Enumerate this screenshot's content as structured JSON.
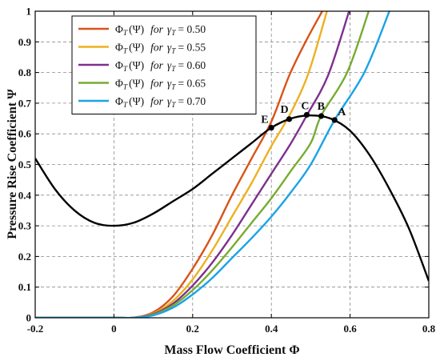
{
  "chart_data": {
    "type": "line",
    "xlabel": "Mass Flow Coefficient Φ",
    "ylabel": "Pressure Rise Coefficient Ψ",
    "xlim": [
      -0.2,
      0.8
    ],
    "ylim": [
      0,
      1
    ],
    "xticks": [
      "-0.2",
      "0",
      "0.2",
      "0.4",
      "0.6",
      "0.8"
    ],
    "yticks": [
      "0",
      "0.1",
      "0.2",
      "0.3",
      "0.4",
      "0.5",
      "0.6",
      "0.7",
      "0.8",
      "0.9",
      "1"
    ],
    "grid": true,
    "grid_style": "dashed",
    "legend_position": "top-left",
    "compressor_characteristic": {
      "color": "#000000",
      "x": [
        -0.2,
        -0.15,
        -0.1,
        -0.05,
        0,
        0.05,
        0.1,
        0.15,
        0.2,
        0.25,
        0.3,
        0.35,
        0.4,
        0.45,
        0.5,
        0.55,
        0.6,
        0.65,
        0.7,
        0.75,
        0.8
      ],
      "y": [
        0.52,
        0.42,
        0.35,
        0.31,
        0.3,
        0.31,
        0.34,
        0.38,
        0.42,
        0.47,
        0.52,
        0.57,
        0.62,
        0.65,
        0.66,
        0.65,
        0.61,
        0.53,
        0.42,
        0.29,
        0.12
      ]
    },
    "series": [
      {
        "label_prefix": "Φ",
        "label_sub": "T",
        "label_arg": "(Ψ)",
        "label_for": "for",
        "label_gamma": "γ",
        "label_eq": "= 0.50",
        "color": "#d95319",
        "x": [
          -0.2,
          0,
          0.05,
          0.1,
          0.15,
          0.2,
          0.25,
          0.3,
          0.35,
          0.4,
          0.4453,
          0.4868,
          0.5292
        ],
        "y": [
          0,
          0,
          0.0005,
          0.018,
          0.07,
          0.16,
          0.27,
          0.4,
          0.52,
          0.64,
          0.79,
          0.9,
          1.0
        ]
      },
      {
        "label_prefix": "Φ",
        "label_sub": "T",
        "label_arg": "(Ψ)",
        "label_for": "for",
        "label_gamma": "γ",
        "label_eq": "= 0.55",
        "color": "#edb120",
        "x": [
          -0.2,
          0,
          0.05,
          0.1,
          0.15,
          0.2,
          0.25,
          0.3,
          0.35,
          0.4,
          0.45,
          0.4948,
          0.5412
        ],
        "y": [
          0,
          0,
          0.0004,
          0.014,
          0.055,
          0.125,
          0.22,
          0.33,
          0.44,
          0.56,
          0.67,
          0.8,
          1.0
        ]
      },
      {
        "label_prefix": "Φ",
        "label_sub": "T",
        "label_arg": "(Ψ)",
        "label_for": "for",
        "label_gamma": "γ",
        "label_eq": "= 0.60",
        "color": "#7e2f8e",
        "x": [
          -0.2,
          0,
          0.05,
          0.1,
          0.15,
          0.2,
          0.25,
          0.3,
          0.35,
          0.4,
          0.45,
          0.4899,
          0.5439,
          0.5975
        ],
        "y": [
          0,
          0,
          0.0003,
          0.012,
          0.046,
          0.105,
          0.18,
          0.27,
          0.37,
          0.47,
          0.57,
          0.66,
          0.79,
          1.0
        ]
      },
      {
        "label_prefix": "Φ",
        "label_sub": "T",
        "label_arg": "(Ψ)",
        "label_for": "for",
        "label_gamma": "γ",
        "label_eq": "= 0.65",
        "color": "#77ac30",
        "x": [
          -0.2,
          0,
          0.05,
          0.1,
          0.15,
          0.2,
          0.25,
          0.3,
          0.35,
          0.4,
          0.45,
          0.5,
          0.5268,
          0.5925,
          0.6473
        ],
        "y": [
          0,
          0,
          0.0003,
          0.01,
          0.04,
          0.09,
          0.155,
          0.23,
          0.31,
          0.39,
          0.48,
          0.57,
          0.66,
          0.8,
          1.0
        ]
      },
      {
        "label_prefix": "Φ",
        "label_sub": "T",
        "label_arg": "(Ψ)",
        "label_for": "for",
        "label_gamma": "γ",
        "label_eq": "= 0.70",
        "color": "#1aa3e6",
        "x": [
          -0.2,
          0,
          0.05,
          0.1,
          0.15,
          0.2,
          0.25,
          0.3,
          0.35,
          0.4,
          0.45,
          0.5,
          0.5606,
          0.6362,
          0.6998
        ],
        "y": [
          0,
          0,
          0.0002,
          0.008,
          0.033,
          0.076,
          0.13,
          0.195,
          0.26,
          0.33,
          0.41,
          0.5,
          0.645,
          0.8,
          1.0
        ]
      }
    ],
    "points": [
      {
        "label": "A",
        "x": 0.5606,
        "y": 0.645
      },
      {
        "label": "B",
        "x": 0.5268,
        "y": 0.658
      },
      {
        "label": "C",
        "x": 0.4899,
        "y": 0.662
      },
      {
        "label": "D",
        "x": 0.4453,
        "y": 0.648
      },
      {
        "label": "E",
        "x": 0.4,
        "y": 0.62
      }
    ]
  }
}
